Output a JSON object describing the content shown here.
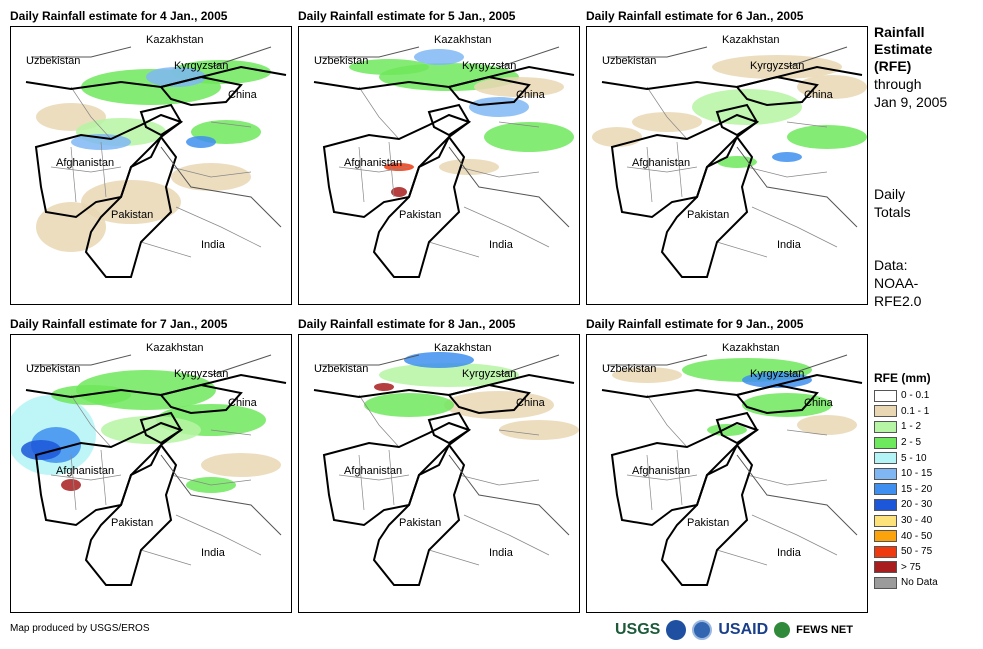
{
  "panels": [
    {
      "title": "Daily Rainfall estimate for 4 Jan., 2005"
    },
    {
      "title": "Daily Rainfall estimate for 5 Jan., 2005"
    },
    {
      "title": "Daily Rainfall estimate for 6 Jan., 2005"
    },
    {
      "title": "Daily Rainfall estimate for 7 Jan., 2005"
    },
    {
      "title": "Daily Rainfall estimate for 8 Jan., 2005"
    },
    {
      "title": "Daily Rainfall estimate for 9 Jan., 2005"
    }
  ],
  "labels": {
    "kazakhstan": "Kazakhstan",
    "uzbekistan": "Uzbekistan",
    "kyrgyzstan": "Kyrgyzstan",
    "china": "China",
    "afghanistan": "Afghanistan",
    "pakistan": "Pakistan",
    "india": "India"
  },
  "side": {
    "title_line1": "Rainfall",
    "title_line2": "Estimate",
    "title_line3": "(RFE)",
    "through": "through",
    "date": "Jan 9, 2005",
    "daily": "Daily",
    "totals": "Totals",
    "data": "Data:",
    "noaa": "NOAA-",
    "rfe": "RFE2.0"
  },
  "legend": {
    "title": "RFE (mm)",
    "items": [
      {
        "label": "0 - 0.1",
        "color": "#ffffff"
      },
      {
        "label": "0.1 - 1",
        "color": "#e9d7b4"
      },
      {
        "label": "1 - 2",
        "color": "#b6f5a3"
      },
      {
        "label": "2 - 5",
        "color": "#6ee85c"
      },
      {
        "label": "5 - 10",
        "color": "#b3f5f7"
      },
      {
        "label": "10 - 15",
        "color": "#7fb7f5"
      },
      {
        "label": "15 - 20",
        "color": "#3f8ff0"
      },
      {
        "label": "20 - 30",
        "color": "#1c57d9"
      },
      {
        "label": "30 - 40",
        "color": "#fde27c"
      },
      {
        "label": "40 - 50",
        "color": "#fca20b"
      },
      {
        "label": "50 - 75",
        "color": "#ef3a10"
      },
      {
        "label": "> 75",
        "color": "#a81d1d"
      },
      {
        "label": "No Data",
        "color": "#9b9b9b"
      }
    ]
  },
  "footer": {
    "credit": "Map produced by USGS/EROS"
  },
  "logos": {
    "usgs": "USGS",
    "usaid": "USAID",
    "fews": "FEWS NET"
  }
}
